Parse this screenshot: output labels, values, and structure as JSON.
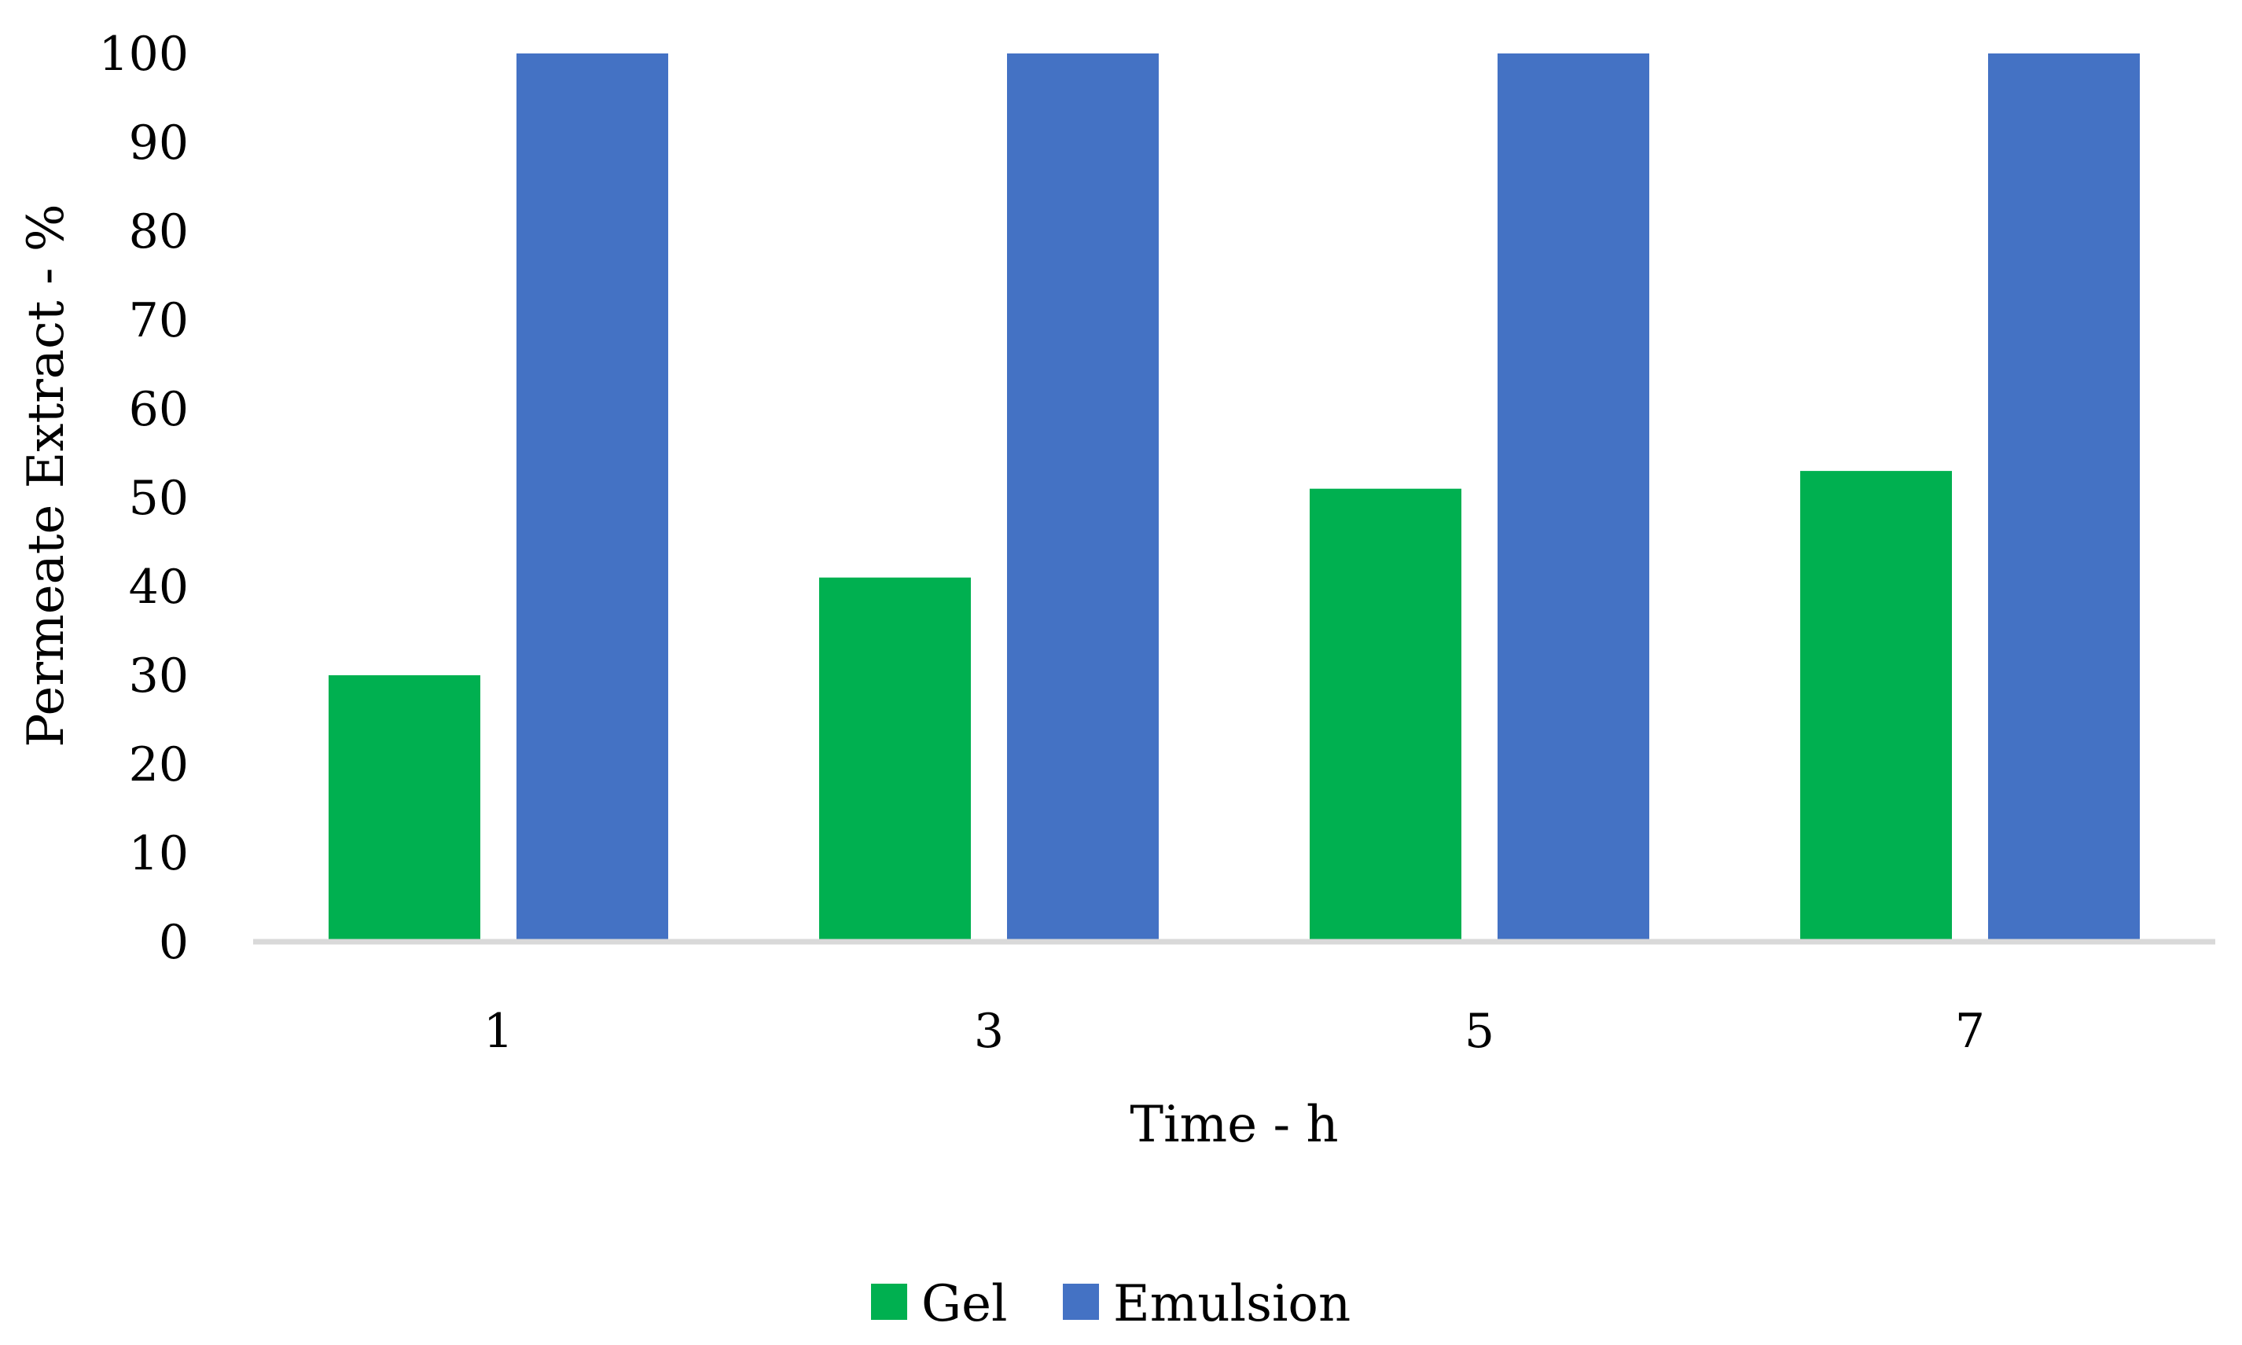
{
  "chart_data": {
    "type": "bar",
    "title": "",
    "xlabel": "Time - h",
    "ylabel": "Permeate Extract - %",
    "categories": [
      "1",
      "3",
      "5",
      "7"
    ],
    "ylim": [
      0,
      100
    ],
    "yticks": [
      0,
      10,
      20,
      30,
      40,
      50,
      60,
      70,
      80,
      90,
      100
    ],
    "grid": false,
    "legend_position": "bottom",
    "series": [
      {
        "name": "Gel",
        "color": "#00b050",
        "values": [
          30,
          41,
          51,
          53
        ]
      },
      {
        "name": "Emulsion",
        "color": "#4472c4",
        "values": [
          100,
          100,
          100,
          100
        ]
      }
    ]
  }
}
